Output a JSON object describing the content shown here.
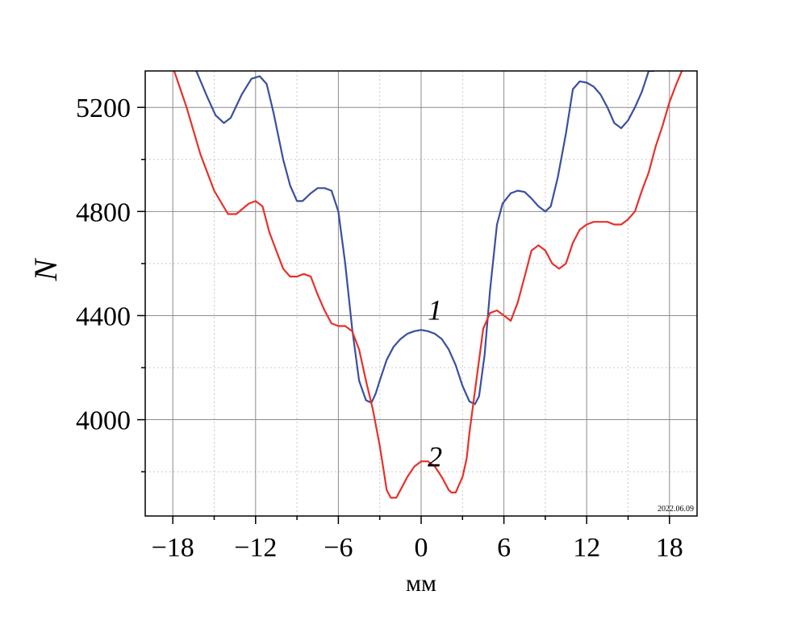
{
  "chart_data": {
    "type": "line",
    "title": "",
    "xlabel": "мм",
    "ylabel": "N",
    "xlim": [
      -20,
      20
    ],
    "ylim": [
      3630,
      5340
    ],
    "grid": true,
    "x_ticks": [
      -18,
      -12,
      -6,
      0,
      6,
      12,
      18
    ],
    "x_tick_labels": [
      "−18",
      "−12",
      "−6",
      "0",
      "6",
      "12",
      "18"
    ],
    "y_ticks": [
      4000,
      4400,
      4800,
      5200
    ],
    "y_tick_labels": [
      "4000",
      "4400",
      "4800",
      "5200"
    ],
    "date_stamp": "2022.06.09",
    "annotations": [
      {
        "text": "1",
        "x": 1.0,
        "y": 4385
      },
      {
        "text": "2",
        "x": 1.0,
        "y": 3820
      }
    ],
    "series": [
      {
        "label": "1",
        "color": "#3a4fa0",
        "x": [
          -16.3,
          -15.5,
          -14.9,
          -14.3,
          -13.8,
          -13.0,
          -12.3,
          -11.7,
          -11.2,
          -10.7,
          -10.0,
          -9.5,
          -9.0,
          -8.6,
          -8.0,
          -7.5,
          -7.0,
          -6.5,
          -6.0,
          -5.5,
          -5.0,
          -4.5,
          -4.0,
          -3.6,
          -3.3,
          -3.0,
          -2.5,
          -2.0,
          -1.5,
          -1.0,
          -0.5,
          0.0,
          0.5,
          1.0,
          1.5,
          2.0,
          2.5,
          3.0,
          3.5,
          3.9,
          4.2,
          4.6,
          5.0,
          5.5,
          5.9,
          6.5,
          7.0,
          7.5,
          8.0,
          8.5,
          9.0,
          9.4,
          9.9,
          10.5,
          11.0,
          11.5,
          12.0,
          12.5,
          13.0,
          13.5,
          14.0,
          14.5,
          15.0,
          15.5,
          16.0,
          16.5,
          16.9
        ],
        "y": [
          5340,
          5240,
          5170,
          5140,
          5160,
          5250,
          5310,
          5320,
          5290,
          5180,
          5000,
          4900,
          4840,
          4840,
          4870,
          4890,
          4890,
          4880,
          4800,
          4600,
          4350,
          4150,
          4075,
          4065,
          4100,
          4150,
          4230,
          4280,
          4310,
          4330,
          4340,
          4345,
          4340,
          4330,
          4310,
          4270,
          4210,
          4130,
          4070,
          4060,
          4090,
          4250,
          4500,
          4750,
          4830,
          4870,
          4880,
          4875,
          4850,
          4820,
          4800,
          4820,
          4930,
          5100,
          5270,
          5300,
          5295,
          5280,
          5250,
          5200,
          5140,
          5120,
          5150,
          5200,
          5260,
          5340,
          5340
        ]
      },
      {
        "label": "2",
        "color": "#e8302a",
        "x": [
          -17.9,
          -17.0,
          -16.0,
          -15.0,
          -14.0,
          -13.4,
          -12.5,
          -12.0,
          -11.5,
          -11.0,
          -10.5,
          -10.0,
          -9.5,
          -9.0,
          -8.5,
          -8.0,
          -7.5,
          -7.0,
          -6.5,
          -6.0,
          -5.5,
          -5.0,
          -4.5,
          -4.0,
          -3.5,
          -3.0,
          -2.7,
          -2.5,
          -2.2,
          -1.8,
          -1.5,
          -1.0,
          -0.5,
          0.0,
          0.5,
          1.0,
          1.5,
          2.0,
          2.2,
          2.5,
          3.0,
          3.3,
          3.5,
          4.0,
          4.5,
          5.0,
          5.5,
          6.0,
          6.5,
          7.0,
          7.5,
          8.0,
          8.5,
          9.0,
          9.5,
          10.0,
          10.5,
          11.0,
          11.5,
          12.0,
          12.5,
          13.0,
          13.5,
          14.0,
          14.5,
          15.0,
          15.5,
          16.0,
          16.5,
          17.0,
          17.5,
          18.0,
          18.5,
          18.9
        ],
        "y": [
          5340,
          5200,
          5020,
          4880,
          4790,
          4790,
          4830,
          4840,
          4820,
          4720,
          4650,
          4580,
          4550,
          4550,
          4560,
          4550,
          4480,
          4420,
          4370,
          4360,
          4360,
          4340,
          4270,
          4150,
          4040,
          3900,
          3800,
          3730,
          3700,
          3700,
          3730,
          3780,
          3820,
          3840,
          3840,
          3820,
          3780,
          3730,
          3720,
          3720,
          3780,
          3850,
          3950,
          4150,
          4350,
          4410,
          4420,
          4400,
          4380,
          4450,
          4550,
          4650,
          4670,
          4650,
          4600,
          4580,
          4600,
          4680,
          4730,
          4750,
          4760,
          4760,
          4760,
          4750,
          4750,
          4770,
          4800,
          4880,
          4950,
          5050,
          5130,
          5220,
          5290,
          5340
        ]
      }
    ]
  }
}
